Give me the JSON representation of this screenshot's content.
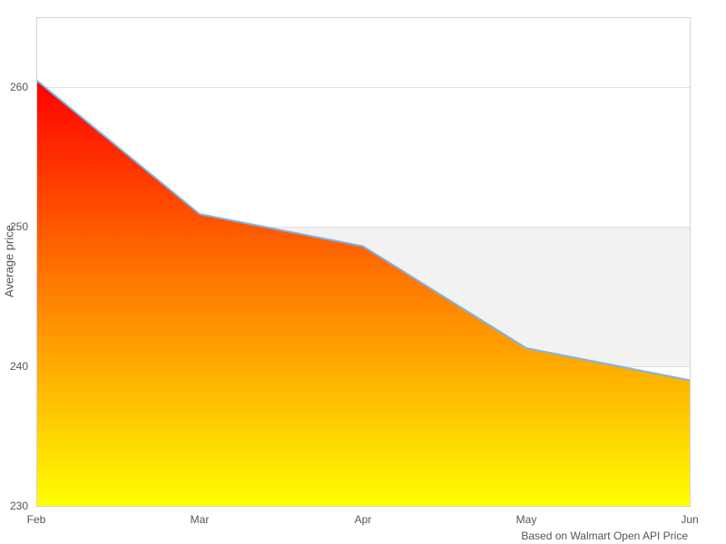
{
  "chart_data": {
    "type": "area",
    "categories": [
      "Feb",
      "Mar",
      "Apr",
      "May",
      "Jun"
    ],
    "values": [
      260.5,
      250.9,
      248.6,
      241.3,
      239.0
    ],
    "title": "",
    "xlabel": "",
    "ylabel": "Average price",
    "caption": "Based on Walmart Open API Price",
    "ylim": [
      230,
      265
    ],
    "yticks": [
      230,
      240,
      250,
      260
    ],
    "grid": true,
    "legend": "none",
    "plot_band": {
      "from": 240,
      "to": 250,
      "color": "#f2f2f2"
    },
    "colors": {
      "line": "#7cb5ec",
      "gradient_top": "#ff0000",
      "gradient_bottom": "#ffff00",
      "gridline": "#e0e0e0",
      "border": "#d4d4d4",
      "text": "#555555",
      "background": "#ffffff"
    }
  }
}
